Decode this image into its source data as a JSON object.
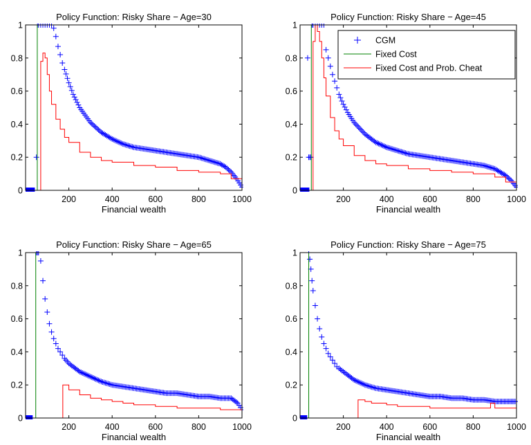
{
  "chart_data": [
    {
      "type": "line",
      "title": "Policy Function: Risky Share − Age=30",
      "xlabel": "Financial wealth",
      "ylabel": "",
      "xlim": [
        0,
        1000
      ],
      "ylim": [
        0,
        1
      ],
      "xticks": [
        200,
        400,
        600,
        800,
        1000
      ],
      "yticks": [
        0,
        0.2,
        0.4,
        0.6,
        0.8,
        1
      ],
      "grid": false,
      "legend": null,
      "series": [
        {
          "name": "CGM",
          "style": "marker-plus",
          "color": "#0000ff",
          "x": [
            10,
            15,
            20,
            25,
            30,
            50,
            55,
            60,
            70,
            80,
            90,
            100,
            110,
            120,
            130,
            140,
            150,
            160,
            170,
            180,
            200,
            220,
            250,
            300,
            350,
            400,
            450,
            500,
            550,
            600,
            650,
            700,
            750,
            800,
            850,
            900,
            925,
            950,
            975,
            1000
          ],
          "y": [
            0,
            0,
            0,
            0,
            0,
            0.2,
            1,
            1,
            1,
            1,
            1,
            1,
            1,
            1,
            0.98,
            0.93,
            0.87,
            0.82,
            0.77,
            0.73,
            0.65,
            0.58,
            0.5,
            0.41,
            0.35,
            0.31,
            0.28,
            0.26,
            0.25,
            0.24,
            0.23,
            0.22,
            0.21,
            0.2,
            0.18,
            0.16,
            0.14,
            0.11,
            0.07,
            0.02
          ]
        },
        {
          "name": "Fixed Cost",
          "style": "line",
          "color": "#008000",
          "x": [
            0,
            54,
            54,
            1000
          ],
          "y": [
            0,
            0,
            1,
            1
          ]
        },
        {
          "name": "Fixed Cost and Prob. Cheat",
          "style": "step",
          "color": "#ff0000",
          "x": [
            0,
            70,
            70,
            80,
            90,
            100,
            110,
            120,
            140,
            160,
            180,
            200,
            250,
            300,
            350,
            400,
            500,
            600,
            700,
            800,
            900,
            950,
            1000
          ],
          "y": [
            0,
            0,
            0.78,
            0.83,
            0.8,
            0.7,
            0.6,
            0.52,
            0.43,
            0.37,
            0.32,
            0.29,
            0.23,
            0.2,
            0.18,
            0.17,
            0.15,
            0.14,
            0.12,
            0.11,
            0.1,
            0.07,
            0.02
          ]
        }
      ]
    },
    {
      "type": "line",
      "title": "Policy Function: Risky Share − Age=45",
      "xlabel": "Financial wealth",
      "ylabel": "",
      "xlim": [
        0,
        1000
      ],
      "ylim": [
        0,
        1
      ],
      "xticks": [
        200,
        400,
        600,
        800,
        1000
      ],
      "yticks": [
        0,
        0.2,
        0.4,
        0.6,
        0.8,
        1
      ],
      "grid": false,
      "legend": "top-right",
      "series": [
        {
          "name": "CGM",
          "style": "marker-plus",
          "color": "#0000ff",
          "x": [
            10,
            15,
            20,
            25,
            30,
            35,
            40,
            45,
            50,
            55,
            60,
            70,
            80,
            90,
            100,
            110,
            120,
            130,
            140,
            150,
            160,
            170,
            180,
            200,
            220,
            250,
            300,
            350,
            400,
            450,
            500,
            550,
            600,
            650,
            700,
            750,
            800,
            850,
            900,
            925,
            950,
            975,
            1000
          ],
          "y": [
            0,
            0,
            0,
            0,
            0,
            0.8,
            0.2,
            0.2,
            0.2,
            1,
            1,
            1,
            1,
            1,
            1,
            1,
            0.85,
            0.8,
            0.75,
            0.7,
            0.66,
            0.62,
            0.58,
            0.52,
            0.47,
            0.41,
            0.34,
            0.29,
            0.26,
            0.24,
            0.22,
            0.21,
            0.2,
            0.19,
            0.18,
            0.17,
            0.16,
            0.15,
            0.13,
            0.11,
            0.09,
            0.06,
            0.02
          ]
        },
        {
          "name": "Fixed Cost",
          "style": "line",
          "color": "#008000",
          "x": [
            0,
            52,
            52,
            1000
          ],
          "y": [
            0,
            0,
            1,
            1
          ]
        },
        {
          "name": "Fixed Cost and Prob. Cheat",
          "style": "step",
          "color": "#ff0000",
          "x": [
            0,
            60,
            60,
            70,
            80,
            90,
            100,
            110,
            120,
            140,
            160,
            180,
            200,
            250,
            300,
            350,
            400,
            500,
            600,
            700,
            800,
            900,
            950,
            1000
          ],
          "y": [
            0,
            0,
            0.9,
            1,
            0.96,
            0.9,
            0.8,
            0.68,
            0.57,
            0.44,
            0.36,
            0.31,
            0.27,
            0.21,
            0.18,
            0.16,
            0.15,
            0.13,
            0.12,
            0.11,
            0.1,
            0.08,
            0.05,
            0.02
          ]
        }
      ]
    },
    {
      "type": "line",
      "title": "Policy Function: Risky Share − Age=65",
      "xlabel": "Financial wealth",
      "ylabel": "",
      "xlim": [
        0,
        1000
      ],
      "ylim": [
        0,
        1
      ],
      "xticks": [
        200,
        400,
        600,
        800,
        1000
      ],
      "yticks": [
        0,
        0.2,
        0.4,
        0.6,
        0.8,
        1
      ],
      "grid": false,
      "legend": null,
      "series": [
        {
          "name": "CGM",
          "style": "marker-plus",
          "color": "#0000ff",
          "x": [
            10,
            15,
            20,
            50,
            55,
            60,
            70,
            80,
            90,
            100,
            110,
            120,
            130,
            140,
            150,
            160,
            170,
            180,
            200,
            220,
            250,
            300,
            350,
            400,
            450,
            500,
            550,
            600,
            650,
            700,
            750,
            800,
            850,
            900,
            950,
            980,
            1000
          ],
          "y": [
            0,
            0,
            0,
            1,
            1,
            1,
            0.95,
            0.83,
            0.72,
            0.64,
            0.57,
            0.52,
            0.48,
            0.45,
            0.42,
            0.4,
            0.38,
            0.36,
            0.33,
            0.31,
            0.28,
            0.25,
            0.22,
            0.2,
            0.19,
            0.18,
            0.17,
            0.16,
            0.15,
            0.15,
            0.14,
            0.13,
            0.13,
            0.12,
            0.12,
            0.09,
            0.05
          ]
        },
        {
          "name": "Fixed Cost",
          "style": "line",
          "color": "#008000",
          "x": [
            0,
            47,
            47,
            1000
          ],
          "y": [
            0,
            0,
            1,
            1
          ]
        },
        {
          "name": "Fixed Cost and Prob. Cheat",
          "style": "step",
          "color": "#ff0000",
          "x": [
            0,
            172,
            172,
            200,
            250,
            300,
            350,
            400,
            450,
            500,
            550,
            600,
            650,
            700,
            800,
            900,
            1000
          ],
          "y": [
            0,
            0,
            0.2,
            0.17,
            0.14,
            0.12,
            0.11,
            0.1,
            0.09,
            0.08,
            0.08,
            0.07,
            0.07,
            0.06,
            0.06,
            0.05,
            0.05
          ]
        }
      ]
    },
    {
      "type": "line",
      "title": "Policy Function: Risky Share − Age=75",
      "xlabel": "Financial wealth",
      "ylabel": "",
      "xlim": [
        0,
        1000
      ],
      "ylim": [
        0,
        1
      ],
      "xticks": [
        200,
        400,
        600,
        800,
        1000
      ],
      "yticks": [
        0,
        0.2,
        0.4,
        0.6,
        0.8,
        1
      ],
      "grid": false,
      "legend": null,
      "series": [
        {
          "name": "CGM",
          "style": "marker-plus",
          "color": "#0000ff",
          "x": [
            10,
            15,
            20,
            40,
            45,
            50,
            55,
            60,
            70,
            80,
            90,
            100,
            110,
            120,
            130,
            140,
            150,
            160,
            170,
            180,
            200,
            220,
            250,
            300,
            350,
            400,
            450,
            500,
            550,
            600,
            650,
            700,
            750,
            800,
            850,
            900,
            950,
            1000
          ],
          "y": [
            0,
            0,
            0,
            1,
            0.96,
            0.9,
            0.83,
            0.77,
            0.68,
            0.6,
            0.54,
            0.49,
            0.45,
            0.42,
            0.39,
            0.37,
            0.35,
            0.33,
            0.31,
            0.3,
            0.28,
            0.26,
            0.23,
            0.2,
            0.18,
            0.17,
            0.16,
            0.15,
            0.14,
            0.13,
            0.13,
            0.12,
            0.12,
            0.11,
            0.11,
            0.1,
            0.1,
            0.1
          ]
        },
        {
          "name": "Fixed Cost",
          "style": "line",
          "color": "#008000",
          "x": [
            0,
            40,
            40,
            1000
          ],
          "y": [
            0,
            0,
            1,
            1
          ]
        },
        {
          "name": "Fixed Cost and Prob. Cheat",
          "style": "step",
          "color": "#ff0000",
          "x": [
            0,
            268,
            268,
            300,
            330,
            400,
            450,
            500,
            600,
            700,
            800,
            860,
            880,
            880,
            900,
            1000
          ],
          "y": [
            0,
            0,
            0.11,
            0.1,
            0.09,
            0.08,
            0.07,
            0.07,
            0.06,
            0.06,
            0.06,
            0.06,
            0.06,
            0.09,
            0.06,
            0.05
          ]
        }
      ]
    }
  ]
}
